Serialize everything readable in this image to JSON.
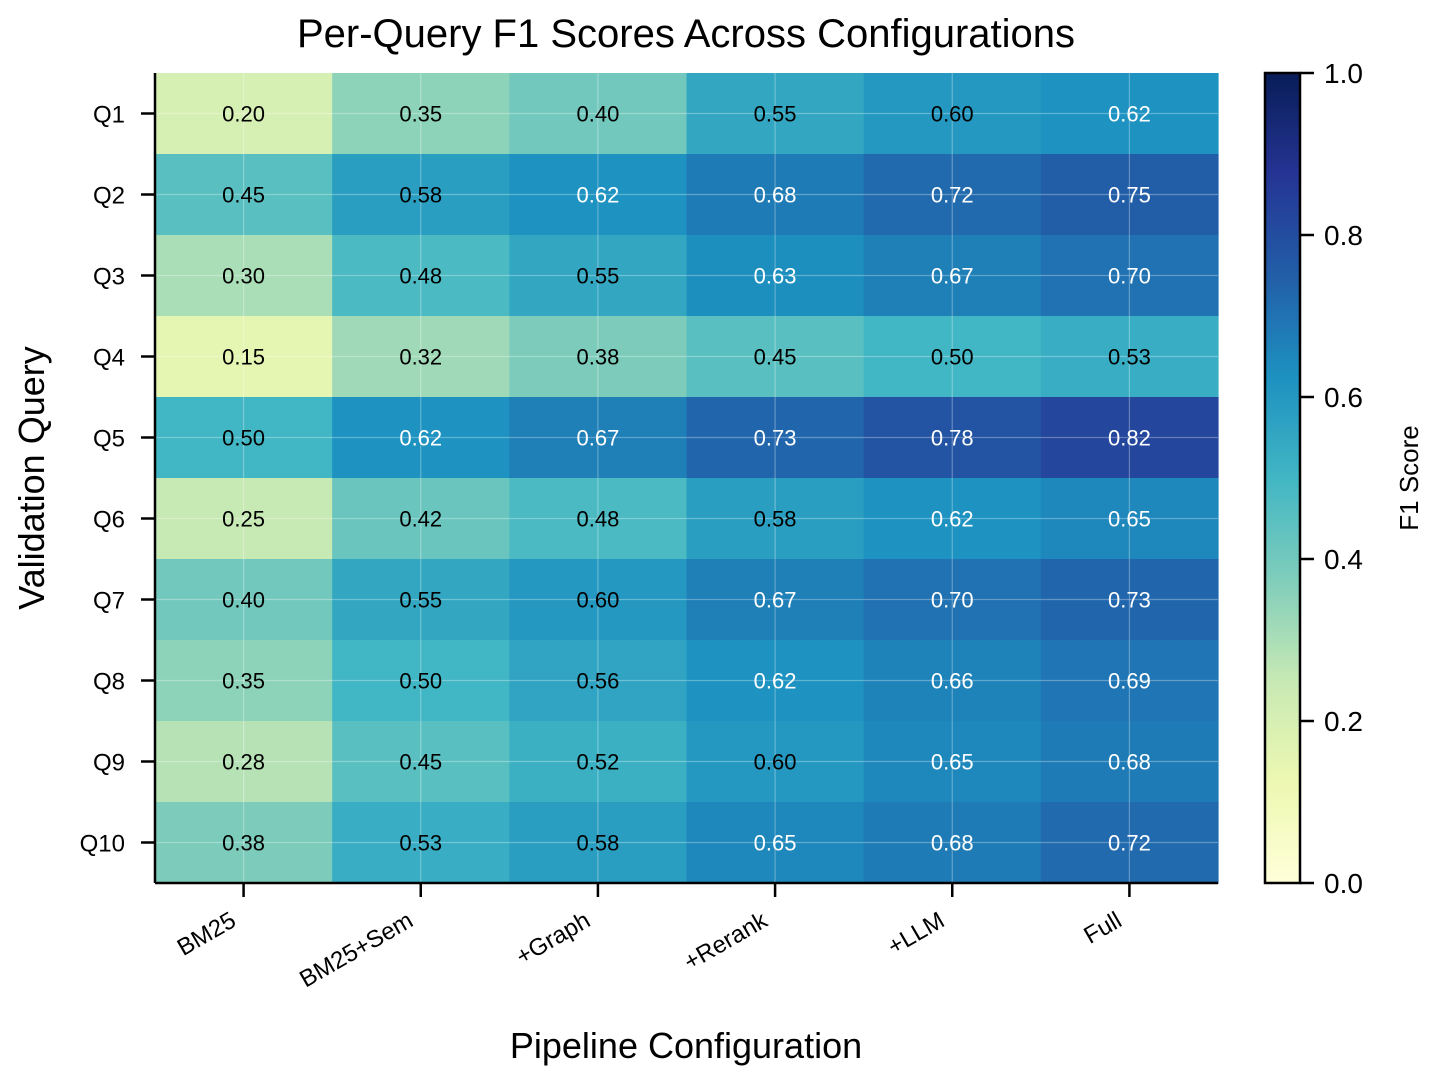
{
  "chart_data": {
    "type": "heatmap",
    "title": "Per-Query F1 Scores Across Configurations",
    "xlabel": "Pipeline Configuration",
    "ylabel": "Validation Query",
    "x_categories": [
      "BM25",
      "BM25+Sem",
      "+Graph",
      "+Rerank",
      "+LLM",
      "Full"
    ],
    "y_categories": [
      "Q1",
      "Q2",
      "Q3",
      "Q4",
      "Q5",
      "Q6",
      "Q7",
      "Q8",
      "Q9",
      "Q10"
    ],
    "values": [
      [
        0.2,
        0.35,
        0.4,
        0.55,
        0.6,
        0.62
      ],
      [
        0.45,
        0.58,
        0.62,
        0.68,
        0.72,
        0.75
      ],
      [
        0.3,
        0.48,
        0.55,
        0.63,
        0.67,
        0.7
      ],
      [
        0.15,
        0.32,
        0.38,
        0.45,
        0.5,
        0.53
      ],
      [
        0.5,
        0.62,
        0.67,
        0.73,
        0.78,
        0.82
      ],
      [
        0.25,
        0.42,
        0.48,
        0.58,
        0.62,
        0.65
      ],
      [
        0.4,
        0.55,
        0.6,
        0.67,
        0.7,
        0.73
      ],
      [
        0.35,
        0.5,
        0.56,
        0.62,
        0.66,
        0.69
      ],
      [
        0.28,
        0.45,
        0.52,
        0.6,
        0.65,
        0.68
      ],
      [
        0.38,
        0.53,
        0.58,
        0.65,
        0.68,
        0.72
      ]
    ],
    "value_format": "0.00",
    "colormap": "YlGnBu",
    "colorbar": {
      "label": "F1 Score",
      "range": [
        0.0,
        1.0
      ],
      "ticks": [
        "0.0",
        "0.2",
        "0.4",
        "0.6",
        "0.8",
        "1.0"
      ]
    },
    "grid": true,
    "x_tick_rotation_deg": 30
  }
}
